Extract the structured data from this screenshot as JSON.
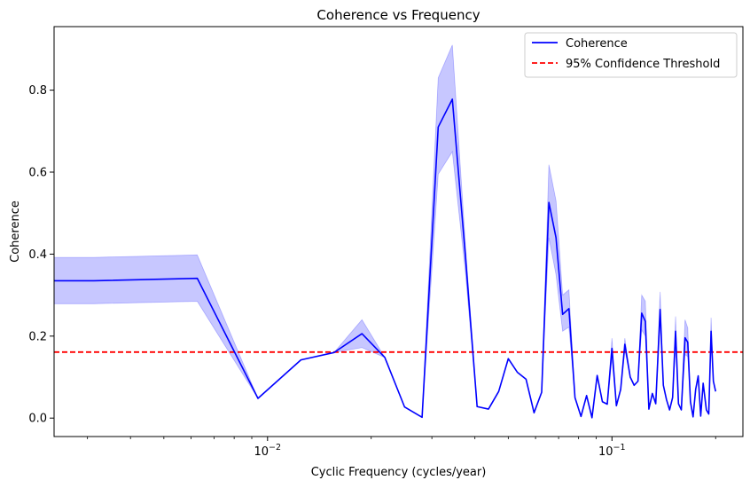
{
  "chart_data": {
    "type": "line",
    "title": "Coherence vs Frequency",
    "xlabel": "Cyclic Frequency (cycles/year)",
    "ylabel": "Coherence",
    "xscale": "log",
    "xlim": [
      0.0024,
      0.24
    ],
    "ylim": [
      -0.045,
      0.955
    ],
    "yticks": [
      0.0,
      0.2,
      0.4,
      0.6,
      0.8
    ],
    "ytick_labels": [
      "0.0",
      "0.2",
      "0.4",
      "0.6",
      "0.8"
    ],
    "xticks_major": [
      0.01,
      0.1
    ],
    "xtick_labels": [
      {
        "base": "10",
        "exp": "−2"
      },
      {
        "base": "10",
        "exp": "−1"
      }
    ],
    "xticks_minor": [
      0.003,
      0.004,
      0.005,
      0.006,
      0.007,
      0.008,
      0.009,
      0.02,
      0.03,
      0.04,
      0.05,
      0.06,
      0.07,
      0.08,
      0.09,
      0.2
    ],
    "legend": {
      "position": "top-right",
      "entries": [
        {
          "label": "Coherence",
          "style": "solid",
          "color": "#0000ff"
        },
        {
          "label": "95% Confidence Threshold",
          "style": "dashed",
          "color": "#ff0000"
        }
      ]
    },
    "threshold": 0.161,
    "series": [
      {
        "name": "Coherence",
        "color": "#0000ff",
        "band_color": "#0000ff",
        "band_alpha": 0.22,
        "x": [
          0.0024,
          0.00313,
          0.00625,
          0.00938,
          0.0125,
          0.0156,
          0.0188,
          0.0219,
          0.025,
          0.0281,
          0.0313,
          0.0344,
          0.0375,
          0.0406,
          0.0438,
          0.0469,
          0.05,
          0.0531,
          0.0563,
          0.0594,
          0.0625,
          0.0656,
          0.0688,
          0.0719,
          0.075,
          0.0781,
          0.0813,
          0.0844,
          0.0875,
          0.0906,
          0.0938,
          0.0969,
          0.1,
          0.103,
          0.106,
          0.109,
          0.113,
          0.116,
          0.119,
          0.122,
          0.125,
          0.128,
          0.131,
          0.134,
          0.138,
          0.141,
          0.144,
          0.147,
          0.15,
          0.153,
          0.156,
          0.159,
          0.163,
          0.166,
          0.169,
          0.172,
          0.175,
          0.178,
          0.181,
          0.184,
          0.188,
          0.191,
          0.194,
          0.197,
          0.2
        ],
        "y": [
          0.335,
          0.335,
          0.341,
          0.048,
          0.142,
          0.16,
          0.206,
          0.148,
          0.027,
          0.002,
          0.71,
          0.778,
          0.4,
          0.028,
          0.022,
          0.065,
          0.145,
          0.112,
          0.095,
          0.013,
          0.063,
          0.526,
          0.44,
          0.253,
          0.267,
          0.05,
          0.004,
          0.055,
          0.001,
          0.104,
          0.04,
          0.034,
          0.17,
          0.03,
          0.07,
          0.18,
          0.1,
          0.08,
          0.09,
          0.256,
          0.236,
          0.022,
          0.06,
          0.035,
          0.265,
          0.08,
          0.045,
          0.02,
          0.05,
          0.212,
          0.035,
          0.02,
          0.196,
          0.185,
          0.04,
          0.003,
          0.07,
          0.103,
          0.005,
          0.085,
          0.02,
          0.01,
          0.212,
          0.09,
          0.065
        ],
        "upper": [
          0.392,
          0.392,
          0.398,
          0.048,
          0.142,
          0.16,
          0.24,
          0.148,
          0.027,
          0.002,
          0.83,
          0.91,
          0.43,
          0.028,
          0.022,
          0.065,
          0.145,
          0.112,
          0.095,
          0.013,
          0.063,
          0.618,
          0.53,
          0.3,
          0.313,
          0.05,
          0.004,
          0.055,
          0.001,
          0.104,
          0.04,
          0.034,
          0.195,
          0.03,
          0.07,
          0.195,
          0.1,
          0.08,
          0.09,
          0.3,
          0.285,
          0.022,
          0.06,
          0.035,
          0.308,
          0.08,
          0.045,
          0.02,
          0.05,
          0.248,
          0.035,
          0.02,
          0.24,
          0.22,
          0.04,
          0.003,
          0.07,
          0.103,
          0.005,
          0.085,
          0.02,
          0.01,
          0.245,
          0.09,
          0.065
        ],
        "lower": [
          0.279,
          0.279,
          0.285,
          0.048,
          0.142,
          0.16,
          0.172,
          0.148,
          0.027,
          0.002,
          0.595,
          0.65,
          0.36,
          0.028,
          0.022,
          0.065,
          0.145,
          0.112,
          0.095,
          0.013,
          0.063,
          0.44,
          0.35,
          0.212,
          0.222,
          0.05,
          0.004,
          0.055,
          0.001,
          0.104,
          0.04,
          0.034,
          0.145,
          0.03,
          0.07,
          0.165,
          0.1,
          0.08,
          0.09,
          0.215,
          0.2,
          0.022,
          0.06,
          0.035,
          0.225,
          0.08,
          0.045,
          0.02,
          0.05,
          0.178,
          0.035,
          0.02,
          0.155,
          0.15,
          0.04,
          0.003,
          0.07,
          0.103,
          0.005,
          0.085,
          0.02,
          0.01,
          0.18,
          0.09,
          0.065
        ]
      }
    ]
  }
}
